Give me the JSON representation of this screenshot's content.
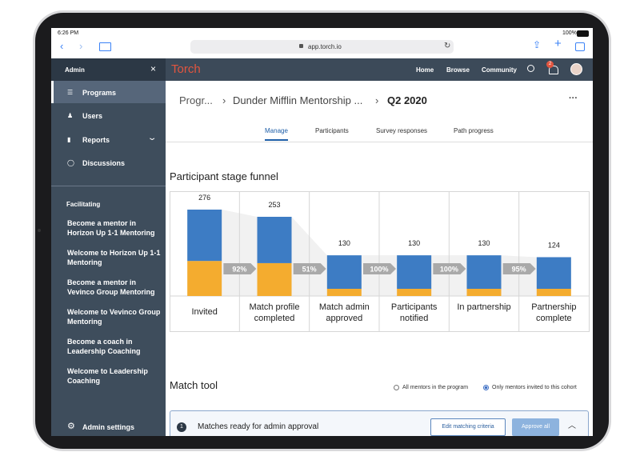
{
  "status_bar": {
    "time": "6:26 PM",
    "battery": "100%"
  },
  "browser": {
    "url": "app.torch.io"
  },
  "sidebar": {
    "title": "Admin",
    "nav": [
      "Programs",
      "Users",
      "Reports",
      "Discussions"
    ],
    "section": "Facilitating",
    "links": [
      "Become a mentor in Horizon Up 1-1 Mentoring",
      "Welcome to Horizon Up 1-1 Mentoring",
      "Become a mentor in Vevinco Group Mentoring",
      "Welcome to Vevinco Group Mentoring",
      "Become a coach in Leadership Coaching",
      "Welcome to Leadership Coaching"
    ],
    "footer": "Admin settings"
  },
  "topnav": {
    "logo": "Torch",
    "links": [
      "Home",
      "Browse",
      "Community"
    ],
    "badge": "2"
  },
  "breadcrumb": [
    "Progr...",
    "Dunder Mifflin Mentorship ...",
    "Q2 2020"
  ],
  "tabs": [
    "Manage",
    "Participants",
    "Survey responses",
    "Path progress"
  ],
  "funnel": {
    "title": "Participant stage funnel",
    "stages": [
      "Invited",
      "Match profile completed",
      "Match admin approved",
      "Participants notified",
      "In partnership",
      "Partnership complete"
    ],
    "totals": [
      276,
      253,
      130,
      130,
      130,
      124
    ],
    "series": [
      {
        "color": "#f4ac2f",
        "values": [
          112,
          105,
          23,
          23,
          23,
          23
        ]
      },
      {
        "color": "#3d7cc4",
        "values": [
          164,
          148,
          107,
          107,
          107,
          101
        ]
      }
    ],
    "conversions": [
      "92%",
      "51%",
      "100%",
      "100%",
      "95%"
    ]
  },
  "match_tool": {
    "title": "Match tool",
    "options": [
      "All mentors in the program",
      "Only mentors invited to this cohort"
    ],
    "selected": 1,
    "card": {
      "step": "1",
      "text": "Matches ready for admin approval",
      "buttons": [
        "Edit matching criteria",
        "Approve all"
      ]
    }
  }
}
